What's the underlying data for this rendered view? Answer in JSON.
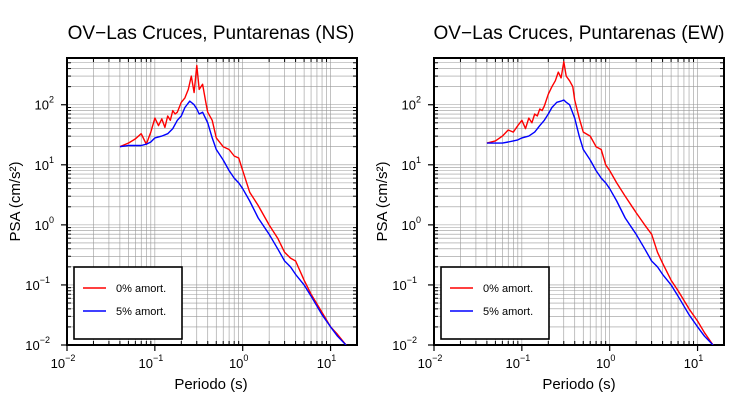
{
  "chart_data": [
    {
      "type": "line",
      "title": "OV−Las Cruces, Puntarenas (NS)",
      "xlabel": "Periodo (s)",
      "ylabel": "PSA (cm/s²)",
      "xscale": "log",
      "yscale": "log",
      "xlim": [
        0.01,
        20
      ],
      "ylim": [
        0.01,
        600
      ],
      "grid": true,
      "legend_position": "bottom-left",
      "series": [
        {
          "name": "0% amort.",
          "color": "#ff0000",
          "x": [
            0.04,
            0.05,
            0.06,
            0.07,
            0.08,
            0.09,
            0.1,
            0.11,
            0.12,
            0.13,
            0.14,
            0.15,
            0.16,
            0.17,
            0.18,
            0.2,
            0.22,
            0.24,
            0.26,
            0.28,
            0.3,
            0.32,
            0.35,
            0.38,
            0.4,
            0.45,
            0.5,
            0.6,
            0.7,
            0.8,
            0.9,
            1.0,
            1.2,
            1.5,
            2.0,
            2.5,
            3.0,
            3.5,
            4.0,
            5.0,
            6.0,
            8.0,
            10.0,
            12.0,
            15.0
          ],
          "values": [
            20,
            23,
            27,
            33,
            22,
            35,
            60,
            45,
            58,
            42,
            65,
            55,
            80,
            70,
            75,
            110,
            130,
            180,
            300,
            160,
            450,
            180,
            220,
            110,
            75,
            55,
            28,
            20,
            18,
            14,
            13,
            8,
            3.5,
            2.1,
            1.0,
            0.6,
            0.35,
            0.28,
            0.25,
            0.12,
            0.07,
            0.035,
            0.02,
            0.015,
            0.01
          ]
        },
        {
          "name": "5% amort.",
          "color": "#0000ff",
          "x": [
            0.04,
            0.05,
            0.06,
            0.07,
            0.08,
            0.09,
            0.1,
            0.12,
            0.14,
            0.16,
            0.18,
            0.2,
            0.22,
            0.25,
            0.28,
            0.3,
            0.32,
            0.35,
            0.4,
            0.45,
            0.5,
            0.6,
            0.7,
            0.8,
            0.9,
            1.0,
            1.2,
            1.5,
            2.0,
            2.5,
            3.0,
            3.5,
            4.0,
            5.0,
            6.0,
            8.0,
            10.0,
            12.0,
            15.0
          ],
          "values": [
            20,
            21,
            21,
            21,
            22,
            24,
            28,
            30,
            33,
            40,
            55,
            65,
            90,
            115,
            100,
            85,
            70,
            75,
            50,
            28,
            18,
            12,
            8,
            6,
            5,
            4,
            2.5,
            1.3,
            0.7,
            0.4,
            0.25,
            0.2,
            0.15,
            0.1,
            0.065,
            0.032,
            0.02,
            0.014,
            0.01
          ]
        }
      ]
    },
    {
      "type": "line",
      "title": "OV−Las Cruces, Puntarenas (EW)",
      "xlabel": "Periodo (s)",
      "ylabel": "PSA (cm/s²)",
      "xscale": "log",
      "yscale": "log",
      "xlim": [
        0.01,
        20
      ],
      "ylim": [
        0.01,
        600
      ],
      "grid": true,
      "legend_position": "bottom-left",
      "series": [
        {
          "name": "0% amort.",
          "color": "#ff0000",
          "x": [
            0.04,
            0.05,
            0.06,
            0.07,
            0.08,
            0.09,
            0.1,
            0.11,
            0.12,
            0.13,
            0.14,
            0.15,
            0.16,
            0.17,
            0.18,
            0.2,
            0.22,
            0.24,
            0.26,
            0.28,
            0.3,
            0.32,
            0.35,
            0.38,
            0.4,
            0.45,
            0.5,
            0.6,
            0.7,
            0.8,
            0.9,
            1.0,
            1.2,
            1.5,
            2.0,
            2.5,
            3.0,
            3.5,
            4.0,
            5.0,
            6.0,
            8.0,
            10.0,
            12.0,
            15.0
          ],
          "values": [
            23,
            25,
            30,
            38,
            35,
            45,
            55,
            40,
            60,
            50,
            70,
            65,
            85,
            80,
            95,
            150,
            200,
            250,
            350,
            280,
            520,
            300,
            250,
            200,
            120,
            60,
            35,
            30,
            20,
            18,
            10,
            8,
            5,
            3,
            1.6,
            1.0,
            0.7,
            0.35,
            0.23,
            0.12,
            0.08,
            0.04,
            0.025,
            0.016,
            0.01
          ]
        },
        {
          "name": "5% amort.",
          "color": "#0000ff",
          "x": [
            0.04,
            0.05,
            0.06,
            0.07,
            0.08,
            0.09,
            0.1,
            0.12,
            0.14,
            0.16,
            0.18,
            0.2,
            0.22,
            0.25,
            0.28,
            0.3,
            0.32,
            0.35,
            0.4,
            0.45,
            0.5,
            0.6,
            0.7,
            0.8,
            0.9,
            1.0,
            1.2,
            1.5,
            2.0,
            2.5,
            3.0,
            3.5,
            4.0,
            5.0,
            6.0,
            8.0,
            10.0,
            12.0,
            15.0
          ],
          "values": [
            23,
            23,
            23,
            24,
            25,
            26,
            28,
            30,
            35,
            45,
            55,
            70,
            90,
            110,
            115,
            120,
            110,
            100,
            60,
            30,
            18,
            12,
            8,
            6,
            5,
            4,
            2.5,
            1.3,
            0.7,
            0.4,
            0.25,
            0.2,
            0.15,
            0.1,
            0.065,
            0.032,
            0.02,
            0.014,
            0.01
          ]
        }
      ]
    }
  ]
}
